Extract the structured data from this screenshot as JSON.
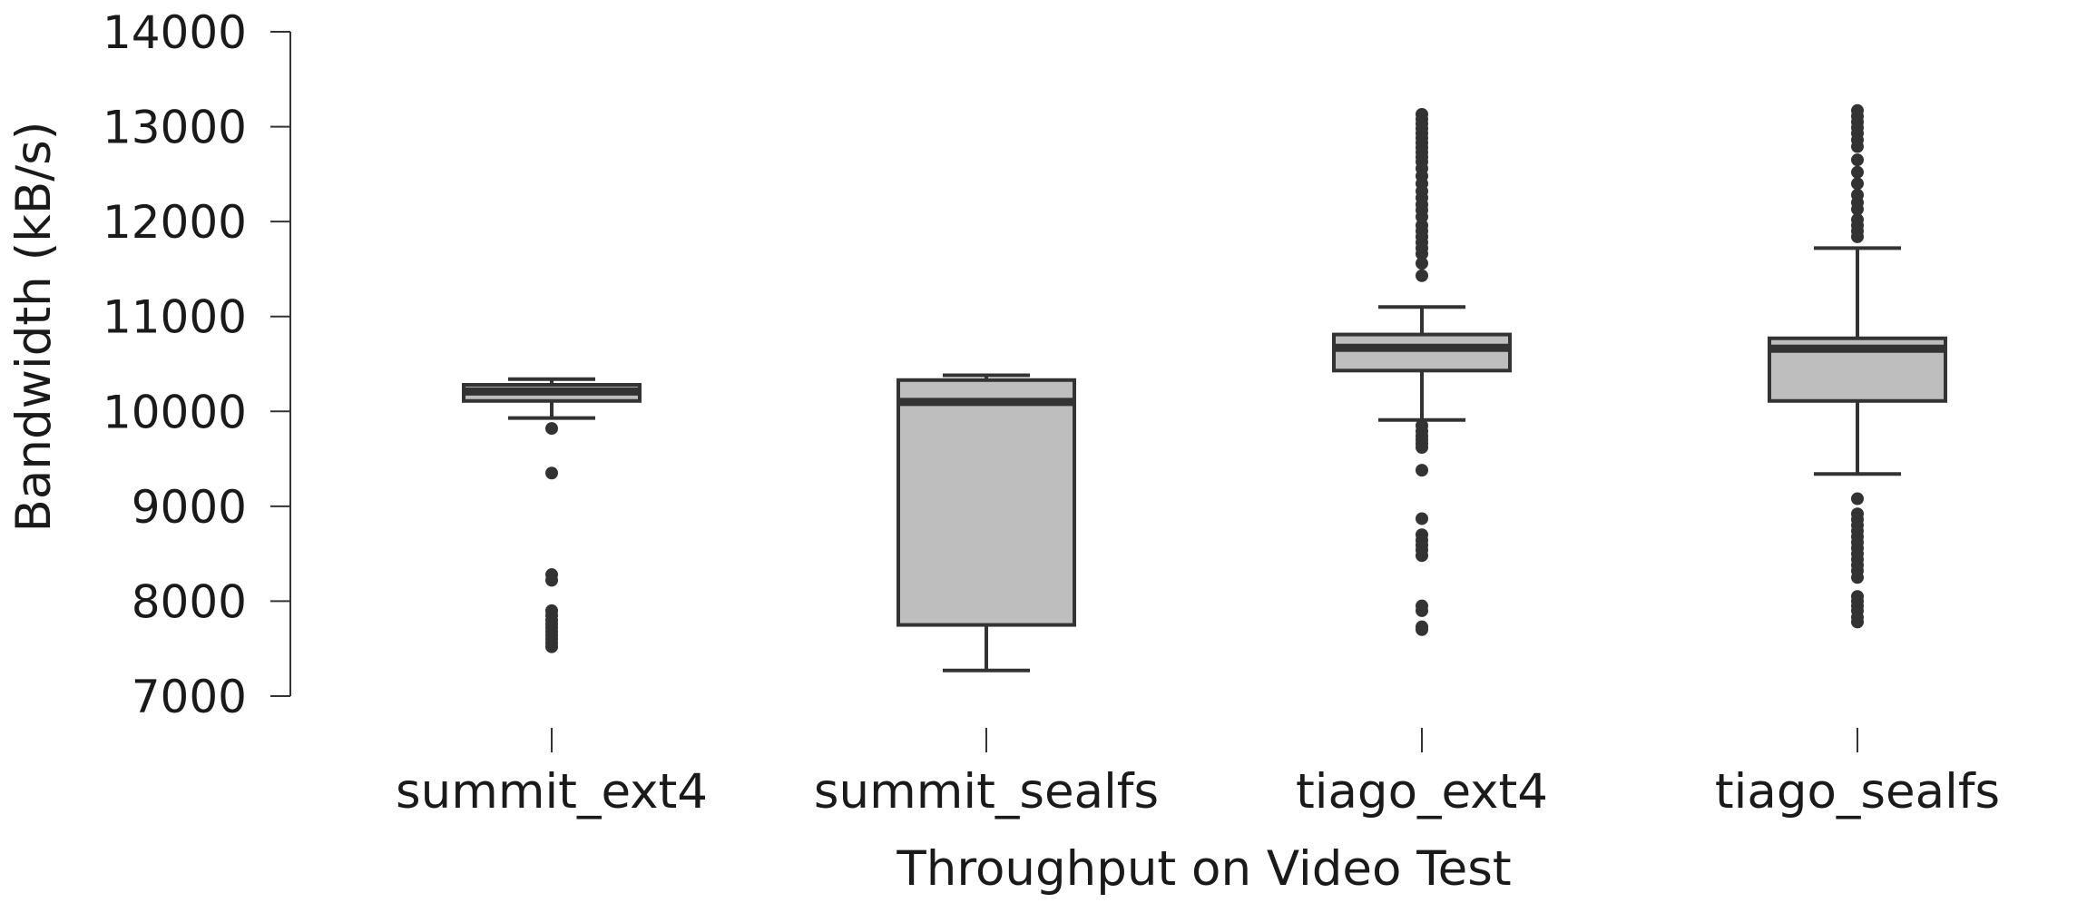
{
  "chart_data": {
    "type": "box",
    "title": "",
    "xlabel": "Throughput on Video Test",
    "ylabel": "Bandwidth (kB/s)",
    "ylim": [
      7000,
      14000
    ],
    "yticks": [
      7000,
      8000,
      9000,
      10000,
      11000,
      12000,
      13000,
      14000
    ],
    "grid": false,
    "categories": [
      "summit_ext4",
      "summit_sealfs",
      "tiago_ext4",
      "tiago_sealfs"
    ],
    "boxes": [
      {
        "category": "summit_ext4",
        "whisker_low": 9930,
        "q1": 10110,
        "median": 10210,
        "q3": 10280,
        "whisker_high": 10340,
        "outliers": [
          9820,
          9350,
          8280,
          8220,
          7900,
          7850,
          7800,
          7760,
          7720,
          7680,
          7640,
          7600,
          7560,
          7520
        ]
      },
      {
        "category": "summit_sealfs",
        "whisker_low": 7270,
        "q1": 7750,
        "median": 10100,
        "q3": 10330,
        "whisker_high": 10380,
        "outliers": []
      },
      {
        "category": "tiago_ext4",
        "whisker_low": 9910,
        "q1": 10430,
        "median": 10670,
        "q3": 10810,
        "whisker_high": 11100,
        "outliers": [
          13130,
          13080,
          13030,
          12980,
          12930,
          12880,
          12830,
          12780,
          12730,
          12680,
          12630,
          12560,
          12480,
          12400,
          12320,
          12250,
          12180,
          12120,
          12050,
          11960,
          11900,
          11840,
          11780,
          11720,
          11660,
          11560,
          11430,
          9850,
          9790,
          9740,
          9700,
          9660,
          9620,
          9380,
          8870,
          8700,
          8640,
          8590,
          8540,
          8480,
          7950,
          7900,
          7730,
          7700
        ]
      },
      {
        "category": "tiago_sealfs",
        "whisker_low": 9340,
        "q1": 10110,
        "median": 10660,
        "q3": 10770,
        "whisker_high": 11720,
        "outliers": [
          13170,
          13110,
          13050,
          12990,
          12930,
          12860,
          12790,
          12650,
          12520,
          12400,
          12280,
          12200,
          12130,
          12020,
          11960,
          11900,
          11840,
          9080,
          8920,
          8860,
          8800,
          8740,
          8680,
          8620,
          8560,
          8500,
          8440,
          8380,
          8320,
          8250,
          8050,
          8000,
          7950,
          7900,
          7830,
          7780
        ]
      }
    ],
    "colors": {
      "box_fill": "#bebebe",
      "stroke": "#333333",
      "axis": "#333333"
    }
  }
}
